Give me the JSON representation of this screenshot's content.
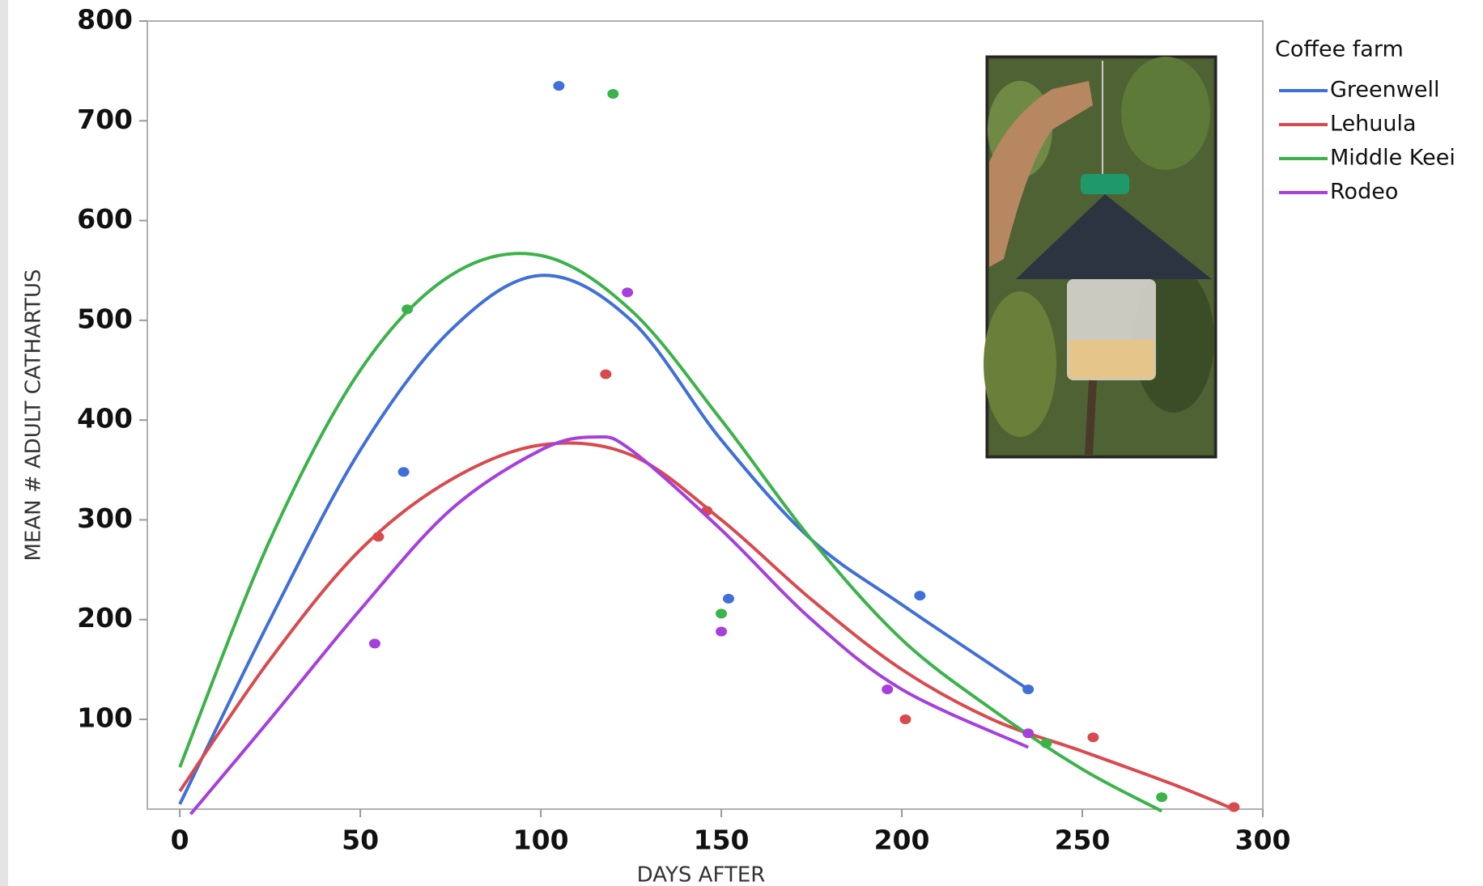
{
  "chart_data": {
    "type": "scatter-fit",
    "x_label": "DAYS AFTER",
    "y_label": "MEAN # ADULT CATHARTUS",
    "legend_title": "Coffee farm",
    "xlim": [
      -9,
      300
    ],
    "ylim": [
      10,
      800
    ],
    "xticks": [
      0,
      50,
      100,
      150,
      200,
      250,
      300
    ],
    "yticks": [
      100,
      200,
      300,
      400,
      500,
      600,
      700,
      800
    ],
    "series": [
      {
        "name": "Greenwell",
        "color": "#3f6fd8",
        "x": [
          62,
          105,
          152,
          205,
          235
        ],
        "values": [
          348,
          735,
          221,
          224,
          130
        ],
        "fit": {
          "x": [
            0,
            25,
            50,
            75,
            100,
            125,
            150,
            175,
            200,
            235
          ],
          "values": [
            15,
            200,
            370,
            490,
            545,
            500,
            380,
            280,
            215,
            130
          ]
        }
      },
      {
        "name": "Lehuula",
        "color": "#d94a4e",
        "x": [
          55,
          118,
          146,
          201,
          253,
          292
        ],
        "values": [
          283,
          446,
          309,
          100,
          82,
          12
        ],
        "fit": {
          "x": [
            0,
            25,
            50,
            75,
            100,
            125,
            150,
            175,
            200,
            225,
            250,
            275,
            292
          ],
          "values": [
            28,
            160,
            270,
            340,
            375,
            365,
            300,
            220,
            150,
            100,
            68,
            35,
            10
          ]
        }
      },
      {
        "name": "Middle Keei",
        "color": "#3bb34a",
        "x": [
          63,
          120,
          150,
          240,
          272
        ],
        "values": [
          511,
          727,
          206,
          76,
          22
        ],
        "fit": {
          "x": [
            0,
            25,
            50,
            75,
            100,
            125,
            150,
            175,
            200,
            225,
            250,
            272
          ],
          "values": [
            52,
            280,
            450,
            545,
            565,
            510,
            400,
            280,
            180,
            110,
            50,
            8
          ]
        }
      },
      {
        "name": "Rodeo",
        "color": "#a63fdc",
        "x": [
          54,
          124,
          150,
          196,
          235
        ],
        "values": [
          176,
          528,
          188,
          130,
          86
        ],
        "fit": {
          "x": [
            3,
            25,
            50,
            75,
            100,
            115,
            125,
            150,
            175,
            200,
            235
          ],
          "values": [
            5,
            100,
            210,
            310,
            370,
            383,
            370,
            290,
            200,
            130,
            72
          ]
        }
      }
    ]
  }
}
